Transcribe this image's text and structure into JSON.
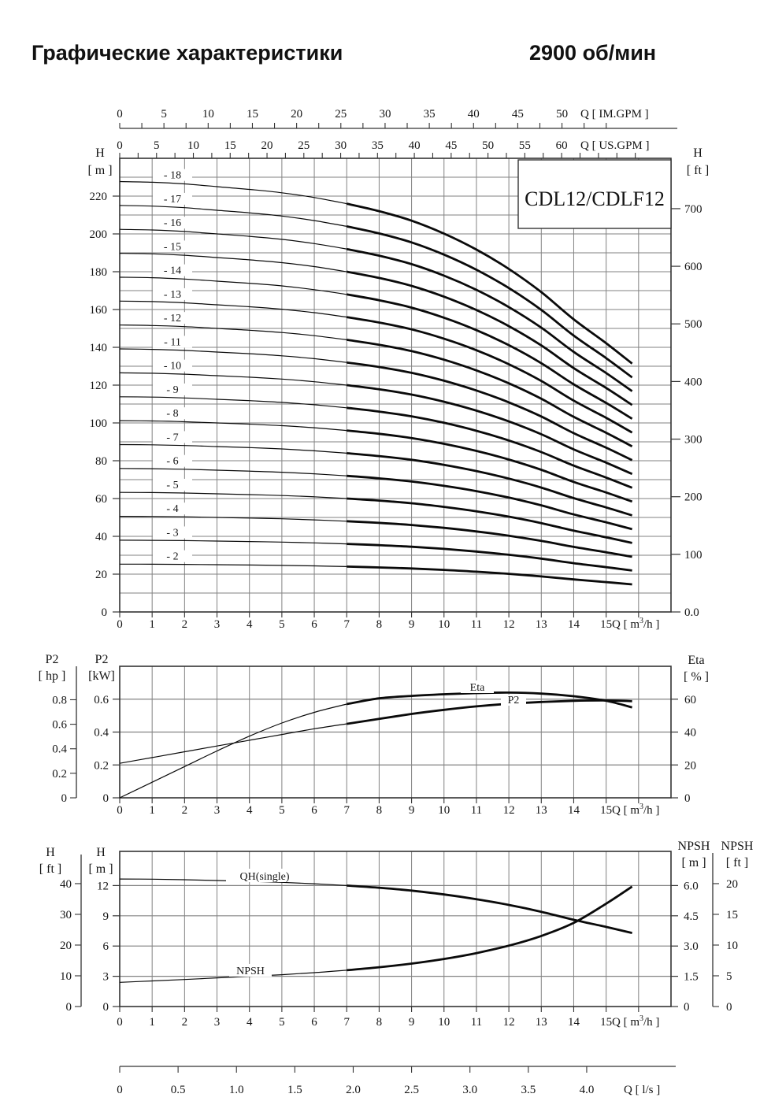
{
  "page": {
    "title": "Графические характеристики",
    "rpm": "2900 об/мин",
    "model": "CDL12/CDLF12"
  },
  "chart_data": [
    {
      "id": "head_flow_multistage",
      "type": "line",
      "title": "CDL12/CDLF12",
      "x_m3h": [
        0,
        1,
        2,
        3,
        4,
        5,
        6,
        7,
        8,
        9,
        10,
        11,
        12,
        13,
        14,
        15,
        15.8
      ],
      "single_stage_head_m": [
        12.65,
        12.63,
        12.58,
        12.5,
        12.42,
        12.32,
        12.18,
        12.0,
        11.78,
        11.5,
        11.12,
        10.65,
        10.08,
        9.4,
        8.6,
        7.9,
        7.3
      ],
      "stages": [
        2,
        3,
        4,
        5,
        6,
        7,
        8,
        9,
        10,
        11,
        12,
        13,
        14,
        15,
        16,
        17,
        18
      ],
      "stage_curve_rule": "head_m = stages × single_stage_head_m",
      "stage_labels": [
        "- 2",
        "- 3",
        "- 4",
        "- 5",
        "- 6",
        "- 7",
        "- 8",
        "- 9",
        "- 10",
        "- 11",
        "- 12",
        "- 13",
        "- 14",
        "- 15",
        "- 16",
        "- 17",
        "- 18"
      ],
      "bold_from_q": 7,
      "xlim_m3h": [
        0,
        17
      ],
      "ylim_m": [
        0,
        240
      ],
      "grid": {
        "x_step": 1,
        "y_step_m": 10
      },
      "axes": {
        "top_im": {
          "unit": "Q [ IM.GPM ]",
          "labels": [
            "0",
            "5",
            "10",
            "15",
            "20",
            "25",
            "30",
            "35",
            "40",
            "45",
            "50"
          ],
          "minor_step": 2.5,
          "minor_max": 55
        },
        "top_us": {
          "unit": "Q [ US.GPM ]",
          "labels": [
            "0",
            "5",
            "10",
            "15",
            "20",
            "25",
            "30",
            "35",
            "40",
            "45",
            "50",
            "55",
            "60"
          ],
          "minor_step": 2.5,
          "minor_max": 70
        },
        "left_m": {
          "header": [
            "H",
            "[ m ]"
          ],
          "labels": [
            "0",
            "20",
            "40",
            "60",
            "80",
            "100",
            "120",
            "140",
            "160",
            "180",
            "200",
            "220"
          ]
        },
        "right_ft": {
          "header": [
            "H",
            "[ ft ]"
          ],
          "labels": [
            "0.0",
            "100",
            "200",
            "300",
            "400",
            "500",
            "600",
            "700"
          ]
        },
        "bottom_m3h": {
          "unit_pre": "Q [ m",
          "unit_sup": "3",
          "unit_post": "/h ]",
          "labels": [
            "0",
            "1",
            "2",
            "3",
            "4",
            "5",
            "6",
            "7",
            "8",
            "9",
            "10",
            "11",
            "12",
            "13",
            "14",
            "15"
          ]
        }
      }
    },
    {
      "id": "power_efficiency",
      "type": "line",
      "x_m3h": [
        0,
        1,
        2,
        3,
        4,
        5,
        6,
        7,
        8,
        9,
        10,
        11,
        12,
        13,
        14,
        15,
        15.8
      ],
      "series": [
        {
          "name": "P2",
          "units": "kW",
          "values": [
            0.21,
            0.245,
            0.28,
            0.315,
            0.35,
            0.385,
            0.42,
            0.45,
            0.48,
            0.51,
            0.535,
            0.556,
            0.572,
            0.583,
            0.59,
            0.592,
            0.588
          ]
        },
        {
          "name": "Eta",
          "units": "%",
          "values": [
            0,
            9.5,
            19,
            28.5,
            37.5,
            45.5,
            52,
            57,
            60.5,
            62,
            63,
            63.7,
            64,
            63.4,
            61.8,
            59,
            55
          ]
        }
      ],
      "bold_from_q": 7,
      "ylim_kw": [
        0,
        0.8
      ],
      "axes": {
        "left_hp": {
          "header": [
            "P2",
            "[ hp ]"
          ],
          "labels": [
            "0",
            "0.2",
            "0.4",
            "0.6",
            "0.8"
          ]
        },
        "left_kw": {
          "header": [
            "P2",
            "[kW]"
          ],
          "labels": [
            "0",
            "0.2",
            "0.4",
            "0.6"
          ]
        },
        "right_eta": {
          "header": [
            "Eta",
            "[ % ]"
          ],
          "labels": [
            "0",
            "20",
            "40",
            "60"
          ]
        },
        "bottom_m3h": {
          "unit_pre": "Q [ m",
          "unit_sup": "3",
          "unit_post": "/h ]",
          "labels": [
            "0",
            "1",
            "2",
            "3",
            "4",
            "5",
            "6",
            "7",
            "8",
            "9",
            "10",
            "11",
            "12",
            "13",
            "14",
            "15"
          ]
        }
      },
      "annotations": [
        {
          "text": "Eta"
        },
        {
          "text": "P2"
        }
      ]
    },
    {
      "id": "single_stage_qh_npsh",
      "type": "line",
      "x_m3h": [
        0,
        1,
        2,
        3,
        4,
        5,
        6,
        7,
        8,
        9,
        10,
        11,
        12,
        13,
        14,
        15,
        15.8
      ],
      "series": [
        {
          "name": "QH(single)",
          "units": "m",
          "values": [
            12.65,
            12.63,
            12.58,
            12.5,
            12.42,
            12.32,
            12.18,
            12.0,
            11.78,
            11.5,
            11.12,
            10.65,
            10.08,
            9.4,
            8.6,
            7.9,
            7.3
          ]
        },
        {
          "name": "NPSH",
          "units": "m",
          "values": [
            1.2,
            1.27,
            1.34,
            1.42,
            1.5,
            1.58,
            1.68,
            1.8,
            1.95,
            2.13,
            2.36,
            2.65,
            3.02,
            3.5,
            4.15,
            5.1,
            5.95
          ]
        }
      ],
      "bold_from_q": 7,
      "ylim_m": [
        0,
        15.4
      ],
      "axes": {
        "left_ft": {
          "header": [
            "H",
            "[ ft ]"
          ],
          "labels": [
            "0",
            "10",
            "20",
            "30",
            "40"
          ]
        },
        "left_m": {
          "header": [
            "H",
            "[ m ]"
          ],
          "labels": [
            "0",
            "3",
            "6",
            "9",
            "12"
          ]
        },
        "right_npsh_m": {
          "header": [
            "NPSH",
            "[ m ]"
          ],
          "labels": [
            "0",
            "1.5",
            "3.0",
            "4.5",
            "6.0"
          ]
        },
        "right_npsh_ft": {
          "header": [
            "NPSH",
            "[ ft ]"
          ],
          "labels": [
            "0",
            "5",
            "10",
            "15",
            "20"
          ]
        },
        "bottom_m3h": {
          "unit_pre": "Q [ m",
          "unit_sup": "3",
          "unit_post": "/h ]",
          "labels": [
            "0",
            "1",
            "2",
            "3",
            "4",
            "5",
            "6",
            "7",
            "8",
            "9",
            "10",
            "11",
            "12",
            "13",
            "14",
            "15"
          ]
        },
        "bottom_ls": {
          "unit": "Q [ l/s ]",
          "labels": [
            "0",
            "0.5",
            "1.0",
            "1.5",
            "2.0",
            "2.5",
            "3.0",
            "3.5",
            "4.0"
          ]
        }
      },
      "annotations": [
        {
          "text": "QH(single)"
        },
        {
          "text": "NPSH"
        }
      ]
    }
  ]
}
